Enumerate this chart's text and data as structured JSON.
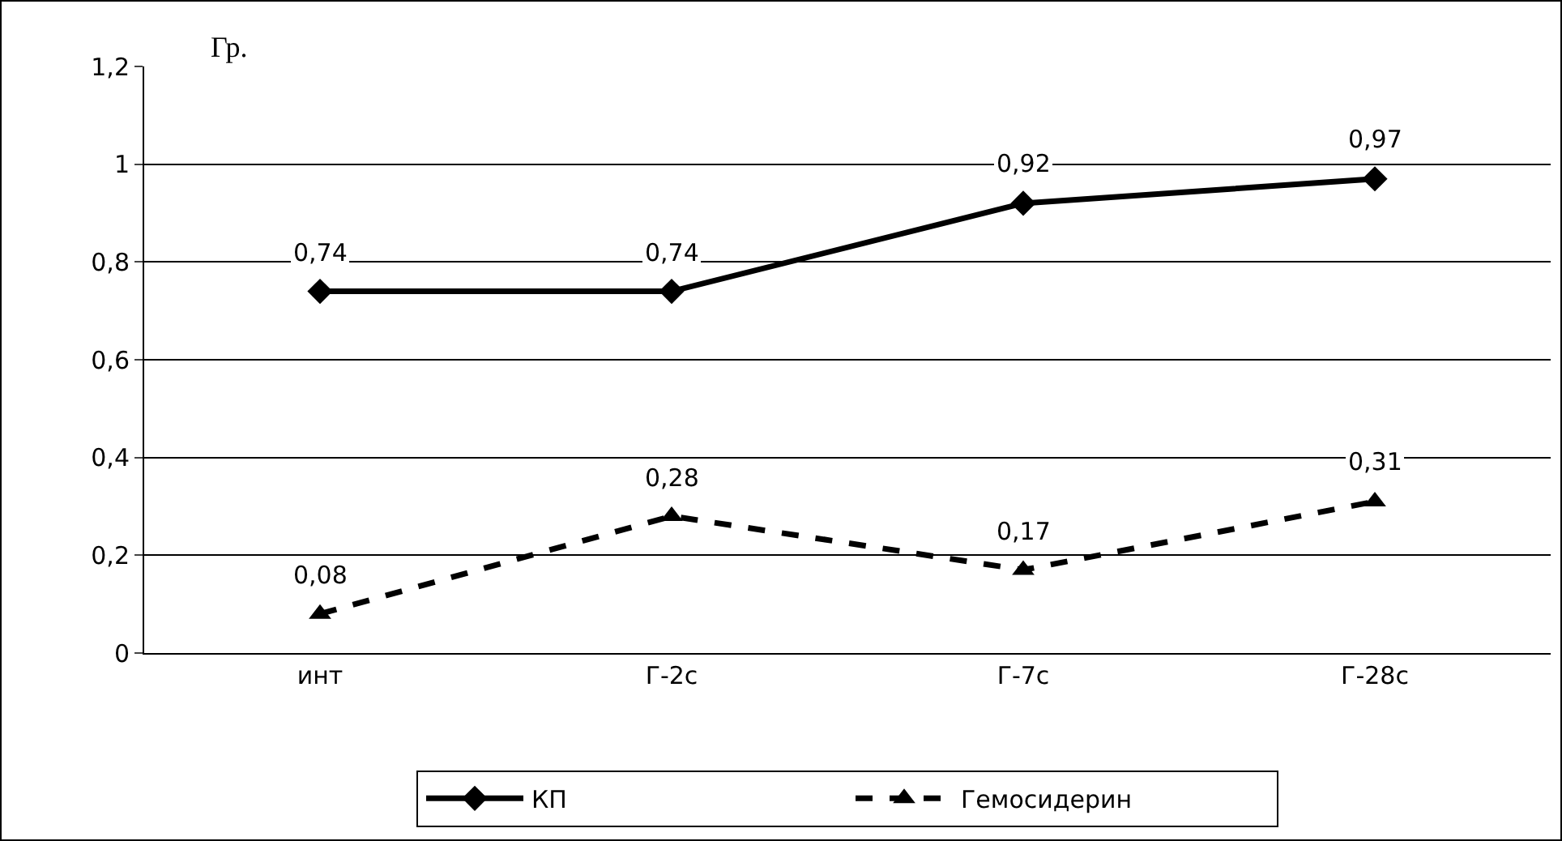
{
  "chart_data": {
    "type": "line",
    "ylabel": "Гр.",
    "categories": [
      "инт",
      "Г-2с",
      "Г-7с",
      "Г-28с"
    ],
    "series": [
      {
        "name": "КП",
        "color": "#000000",
        "values": [
          0.74,
          0.74,
          0.92,
          0.97
        ],
        "value_labels": [
          "0,74",
          "0,74",
          "0,92",
          "0,97"
        ],
        "marker": "diamond",
        "line_style": "solid"
      },
      {
        "name": "Гемосидерин",
        "color": "#000000",
        "values": [
          0.08,
          0.28,
          0.17,
          0.31
        ],
        "value_labels": [
          "0,08",
          "0,28",
          "0,17",
          "0,31"
        ],
        "marker": "triangle",
        "line_style": "dashed"
      }
    ],
    "ylim": [
      0,
      1.2
    ],
    "yticks": [
      {
        "value": 0,
        "label": "0"
      },
      {
        "value": 0.2,
        "label": "0,2"
      },
      {
        "value": 0.4,
        "label": "0,4"
      },
      {
        "value": 0.6,
        "label": "0,6"
      },
      {
        "value": 0.8,
        "label": "0,8"
      },
      {
        "value": 1,
        "label": "1"
      },
      {
        "value": 1.2,
        "label": "1,2"
      }
    ],
    "grid": "y",
    "legend": "bottom"
  }
}
